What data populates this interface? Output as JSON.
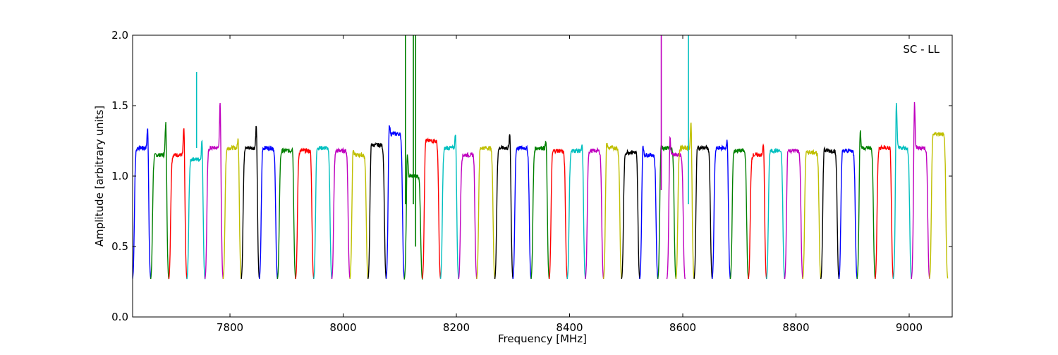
{
  "chart_data": {
    "type": "line",
    "title": "",
    "annotation": "SC - LL",
    "xlabel": "Frequency [MHz]",
    "ylabel": "Amplitude [arbitrary units]",
    "xlim": [
      7628,
      9076
    ],
    "ylim": [
      0.0,
      2.0
    ],
    "xticks": [
      7800,
      8000,
      8200,
      8400,
      8600,
      8800,
      9000
    ],
    "yticks": [
      0.0,
      0.5,
      1.0,
      1.5,
      2.0
    ],
    "ytick_labels": [
      "0.0",
      "0.5",
      "1.0",
      "1.5",
      "2.0"
    ],
    "grid": false,
    "legend": "none",
    "color_cycle": [
      "#0000ff",
      "#008000",
      "#ff0000",
      "#00bfbf",
      "#bf00bf",
      "#bfbf00",
      "#000000"
    ],
    "channel_width_mhz": 32,
    "channels": [
      {
        "start": 7628,
        "color": "#0000ff",
        "top": 1.2,
        "peak_edge": "right",
        "peak": 1.42
      },
      {
        "start": 7660,
        "color": "#008000",
        "top": 1.15,
        "peak_edge": "right",
        "peak": 1.47
      },
      {
        "start": 7692,
        "color": "#ff0000",
        "top": 1.15,
        "peak_edge": "right",
        "peak": 1.43
      },
      {
        "start": 7724,
        "color": "#00bfbf",
        "top": 1.12,
        "peak_edge": "right",
        "peak": 1.33
      },
      {
        "start": 7756,
        "color": "#bf00bf",
        "top": 1.2,
        "peak_edge": "right",
        "peak": 1.62
      },
      {
        "start": 7788,
        "color": "#bfbf00",
        "top": 1.2,
        "peak_edge": "right",
        "peak": 1.33
      },
      {
        "start": 7820,
        "color": "#000000",
        "top": 1.2,
        "peak_edge": "right",
        "peak": 1.44
      },
      {
        "start": 7852,
        "color": "#0000ff",
        "top": 1.2,
        "peak_edge": "left",
        "peak": 1.24
      },
      {
        "start": 7884,
        "color": "#008000",
        "top": 1.18,
        "peak_edge": "right",
        "peak": 1.26
      },
      {
        "start": 7916,
        "color": "#ff0000",
        "top": 1.18,
        "peak_edge": "right",
        "peak": 1.21
      },
      {
        "start": 7948,
        "color": "#00bfbf",
        "top": 1.2,
        "peak_edge": "left",
        "peak": 1.25
      },
      {
        "start": 7980,
        "color": "#bf00bf",
        "top": 1.18,
        "peak_edge": "right",
        "peak": 1.2
      },
      {
        "start": 8012,
        "color": "#bfbf00",
        "top": 1.15,
        "peak_edge": "left",
        "peak": 1.25
      },
      {
        "start": 8044,
        "color": "#000000",
        "top": 1.22,
        "peak_edge": "left",
        "peak": 1.28
      },
      {
        "start": 8076,
        "color": "#0000ff",
        "top": 1.3,
        "peak_edge": "left",
        "peak": 1.44
      },
      {
        "start": 8108,
        "color": "#008000",
        "top": 1.0,
        "peak_edge": "left",
        "peak": 1.23
      },
      {
        "start": 8140,
        "color": "#ff0000",
        "top": 1.25,
        "peak_edge": "left",
        "peak": 1.3
      },
      {
        "start": 8172,
        "color": "#00bfbf",
        "top": 1.2,
        "peak_edge": "right",
        "peak": 1.38
      },
      {
        "start": 8204,
        "color": "#bf00bf",
        "top": 1.15,
        "peak_edge": "right",
        "peak": 1.19
      },
      {
        "start": 8236,
        "color": "#bfbf00",
        "top": 1.2,
        "peak_edge": "left",
        "peak": 1.23
      },
      {
        "start": 8268,
        "color": "#000000",
        "top": 1.2,
        "peak_edge": "right",
        "peak": 1.37
      },
      {
        "start": 8300,
        "color": "#0000ff",
        "top": 1.2,
        "peak_edge": "left",
        "peak": 1.23
      },
      {
        "start": 8332,
        "color": "#008000",
        "top": 1.2,
        "peak_edge": "right",
        "peak": 1.31
      },
      {
        "start": 8364,
        "color": "#ff0000",
        "top": 1.18,
        "peak_edge": "left",
        "peak": 1.2
      },
      {
        "start": 8396,
        "color": "#00bfbf",
        "top": 1.18,
        "peak_edge": "right",
        "peak": 1.27
      },
      {
        "start": 8428,
        "color": "#bf00bf",
        "top": 1.18,
        "peak_edge": "left",
        "peak": 1.2
      },
      {
        "start": 8460,
        "color": "#bfbf00",
        "top": 1.2,
        "peak_edge": "left",
        "peak": 1.3
      },
      {
        "start": 8492,
        "color": "#000000",
        "top": 1.17,
        "peak_edge": "right",
        "peak": 1.2
      },
      {
        "start": 8524,
        "color": "#0000ff",
        "top": 1.15,
        "peak_edge": "left",
        "peak": 1.29
      },
      {
        "start": 8556,
        "color": "#008000",
        "top": 1.2,
        "peak_edge": "left",
        "peak": 1.27
      },
      {
        "start": 8572,
        "color": "#bf00bf",
        "top": 1.15,
        "peak_edge": "left",
        "peak": 1.35
      },
      {
        "start": 8588,
        "color": "#bfbf00",
        "top": 1.2,
        "peak_edge": "right",
        "peak": 1.46
      },
      {
        "start": 8620,
        "color": "#000000",
        "top": 1.2,
        "peak_edge": "left",
        "peak": 1.26
      },
      {
        "start": 8652,
        "color": "#0000ff",
        "top": 1.2,
        "peak_edge": "right",
        "peak": 1.31
      },
      {
        "start": 8684,
        "color": "#008000",
        "top": 1.18,
        "peak_edge": "left",
        "peak": 1.21
      },
      {
        "start": 8716,
        "color": "#ff0000",
        "top": 1.15,
        "peak_edge": "right",
        "peak": 1.3
      },
      {
        "start": 8748,
        "color": "#00bfbf",
        "top": 1.18,
        "peak_edge": "left",
        "peak": 1.2
      },
      {
        "start": 8780,
        "color": "#bf00bf",
        "top": 1.18,
        "peak_edge": "left",
        "peak": 1.24
      },
      {
        "start": 8812,
        "color": "#bfbf00",
        "top": 1.17,
        "peak_edge": "left",
        "peak": 1.2
      },
      {
        "start": 8844,
        "color": "#000000",
        "top": 1.18,
        "peak_edge": "left",
        "peak": 1.24
      },
      {
        "start": 8876,
        "color": "#0000ff",
        "top": 1.18,
        "peak_edge": "left",
        "peak": 1.21
      },
      {
        "start": 8908,
        "color": "#008000",
        "top": 1.2,
        "peak_edge": "left",
        "peak": 1.4
      },
      {
        "start": 8940,
        "color": "#ff0000",
        "top": 1.2,
        "peak_edge": "right",
        "peak": 1.24
      },
      {
        "start": 8972,
        "color": "#00bfbf",
        "top": 1.2,
        "peak_edge": "left",
        "peak": 1.64
      },
      {
        "start": 9004,
        "color": "#bf00bf",
        "top": 1.2,
        "peak_edge": "left",
        "peak": 1.62
      },
      {
        "start": 9036,
        "color": "#bfbf00",
        "top": 1.3,
        "peak_edge": "left",
        "peak": 1.34
      }
    ],
    "spikes": [
      {
        "x": 8110,
        "color": "#008000",
        "from": 0.8,
        "to": 2.0
      },
      {
        "x": 8124,
        "color": "#008000",
        "from": 0.8,
        "to": 2.0
      },
      {
        "x": 8128,
        "color": "#008000",
        "from": 0.5,
        "to": 2.0
      },
      {
        "x": 8562,
        "color": "#bf00bf",
        "from": 0.9,
        "to": 2.0
      },
      {
        "x": 8610,
        "color": "#00bfbf",
        "from": 0.8,
        "to": 2.0
      },
      {
        "x": 7741,
        "color": "#00bfbf",
        "from": 1.2,
        "to": 1.74
      }
    ]
  }
}
